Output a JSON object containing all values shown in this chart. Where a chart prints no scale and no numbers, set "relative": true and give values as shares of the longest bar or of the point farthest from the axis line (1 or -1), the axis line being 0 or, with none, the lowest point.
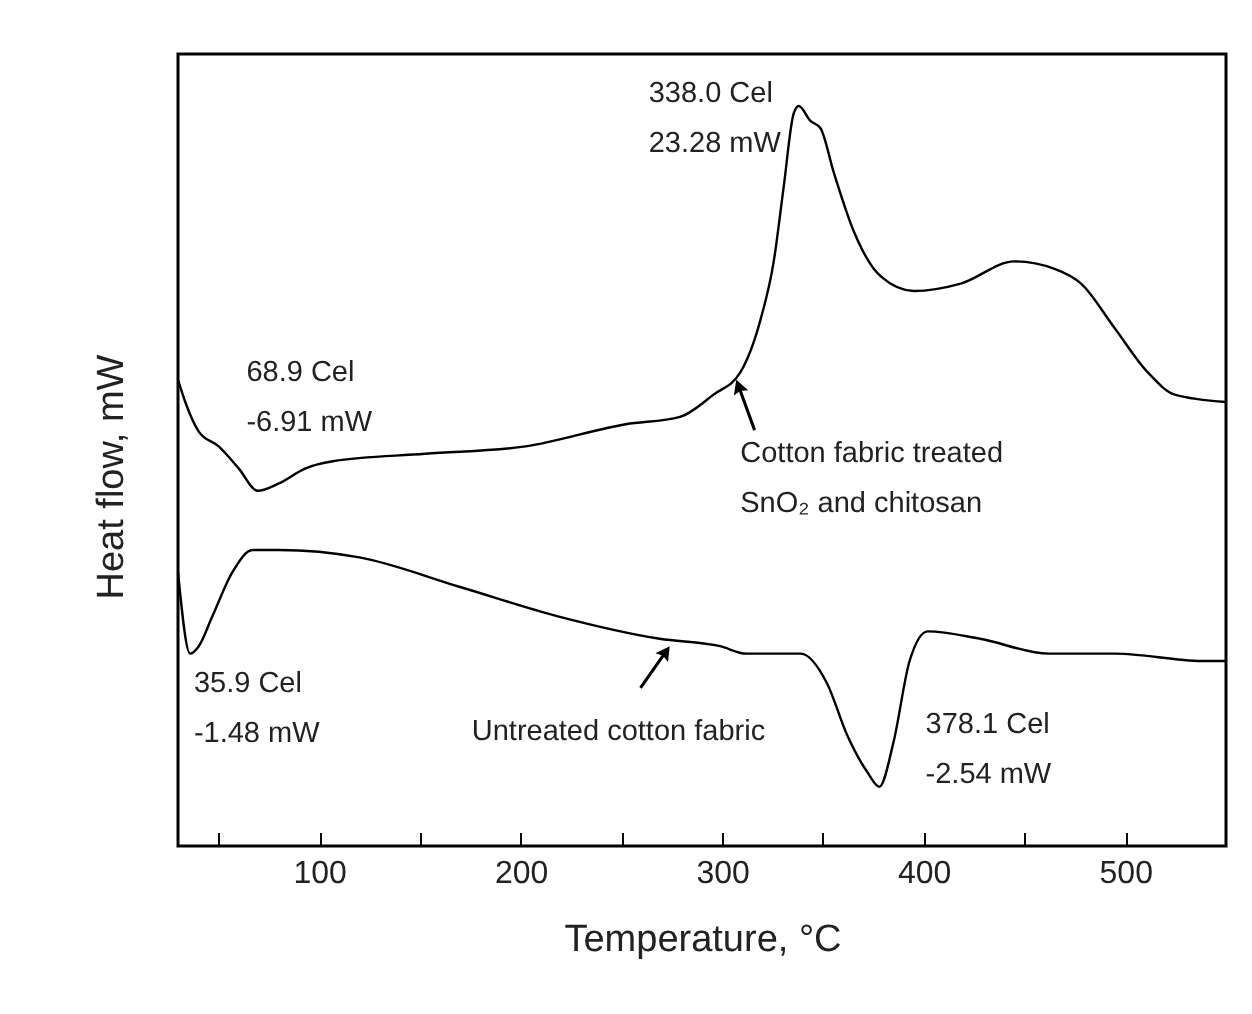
{
  "chart_data": {
    "type": "line",
    "relative": true,
    "xlabel": "Temperature, °C",
    "ylabel": "Heat flow, mW",
    "xlim": [
      30,
      550
    ],
    "xticks": [
      {
        "value": 50,
        "label": null
      },
      100,
      {
        "value": 150,
        "label": null
      },
      200,
      {
        "value": 250,
        "label": null
      },
      300,
      {
        "value": 350,
        "label": null
      },
      400,
      {
        "value": 450,
        "label": null
      },
      500
    ],
    "series": [
      {
        "color": "#000000",
        "x": [
          30,
          33.6,
          40.3,
          50.2,
          60.2,
          69.5,
          80.1,
          93,
          106.7,
          152.7,
          202.5,
          252.2,
          279.1,
          295.7,
          309,
          318.9,
          325.6,
          330.5,
          335.5,
          338,
          343.8,
          348.8,
          355.4,
          365.4,
          378.6,
          395.2,
          418.4,
          445,
          464.9,
          478.1,
          494.7,
          511.2,
          524.6,
          550
        ],
        "values": [
          0.63,
          0.6,
          0.56,
          0.54,
          0.51,
          0.48,
          0.49,
          0.51,
          0.52,
          0.53,
          0.54,
          0.57,
          0.58,
          0.61,
          0.64,
          0.71,
          0.79,
          0.89,
          0.99,
          1,
          0.98,
          0.97,
          0.91,
          0.83,
          0.77,
          0.75,
          0.76,
          0.79,
          0.78,
          0.76,
          0.7,
          0.64,
          0.61,
          0.6
        ]
      },
      {
        "color": "#000000",
        "x": [
          30,
          36,
          40.3,
          47,
          57,
          67,
          80,
          120,
          170,
          219,
          269,
          299,
          312,
          339,
          352,
          362,
          372,
          378,
          385,
          393,
          402,
          428,
          462,
          495,
          538,
          550
        ],
        "values": [
          0.37,
          0.26,
          0.27,
          0.31,
          0.37,
          0.4,
          0.4,
          0.39,
          0.35,
          0.31,
          0.28,
          0.27,
          0.26,
          0.26,
          0.22,
          0.15,
          0.1,
          0.08,
          0.14,
          0.25,
          0.29,
          0.28,
          0.26,
          0.26,
          0.25,
          0.25
        ]
      }
    ],
    "annotations": [
      {
        "text": "338.0 Cel\n23.28 mW",
        "x": 338,
        "y": 1
      },
      {
        "text": "68.9 Cel\n-6.91 mW",
        "x": 68.9,
        "y": 0.48
      },
      {
        "text": "Cotton fabric treated\nSnO₂ and chitosan",
        "x": 307,
        "y": 0.63
      },
      {
        "text": "Untreated cotton fabric",
        "x": 274,
        "y": 0.27
      },
      {
        "text": "35.9 Cel\n-1.48 mW",
        "x": 35.9,
        "y": 0.26
      },
      {
        "text": "378.1 Cel\n-2.54 mW",
        "x": 378.1,
        "y": 0.08
      }
    ]
  }
}
